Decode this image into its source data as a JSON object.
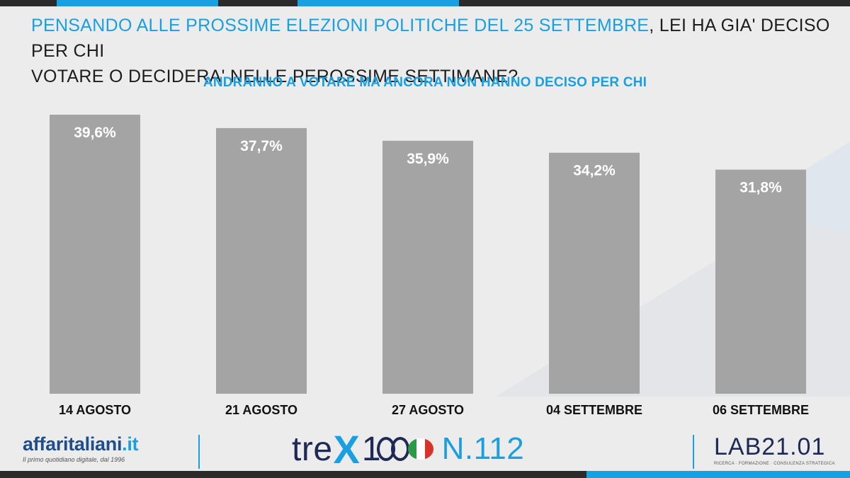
{
  "question": {
    "highlight": "PENSANDO ALLE PROSSIME ELEZIONI POLITICHE DEL 25 SETTEMBRE",
    "rest_line1": ", LEI HA GIA' DECISO PER CHI",
    "line2": "VOTARE O DECIDERA' NELLE PEROSSIME SETTIMANE?"
  },
  "colors": {
    "accent": "#1a9fe0",
    "bar": "#a4a4a4",
    "bar_label": "#ffffff",
    "category_label": "#111111",
    "background": "#ececec",
    "dark_band": "#2b2b2b"
  },
  "chart_data": {
    "type": "bar",
    "title": "ANDRANNO A VOTARE MA ANCORA NON HANNO DECISO PER CHI",
    "xlabel": "",
    "ylabel": "",
    "categories": [
      "14 AGOSTO",
      "21 AGOSTO",
      "27 AGOSTO",
      "04 SETTEMBRE",
      "06 SETTEMBRE"
    ],
    "values": [
      39.6,
      37.7,
      35.9,
      34.2,
      31.8
    ],
    "value_labels": [
      "39,6%",
      "37,7%",
      "35,9%",
      "34,2%",
      "31,8%"
    ],
    "ylim": [
      0,
      40.6
    ],
    "grid": false,
    "legend": "none"
  },
  "footer": {
    "affaritaliani": {
      "name_main": "affaritaliani",
      "name_suffix": ".it",
      "tagline": "Il primo quotidiano digitale, dal 1996"
    },
    "trex": {
      "word": "tre",
      "x": "X",
      "one": "1",
      "number": "N.112"
    },
    "lab": {
      "name": "LAB21.01",
      "tagline": "RICERCA · FORMAZIONE · CONSULENZA STRATEGICA"
    }
  }
}
